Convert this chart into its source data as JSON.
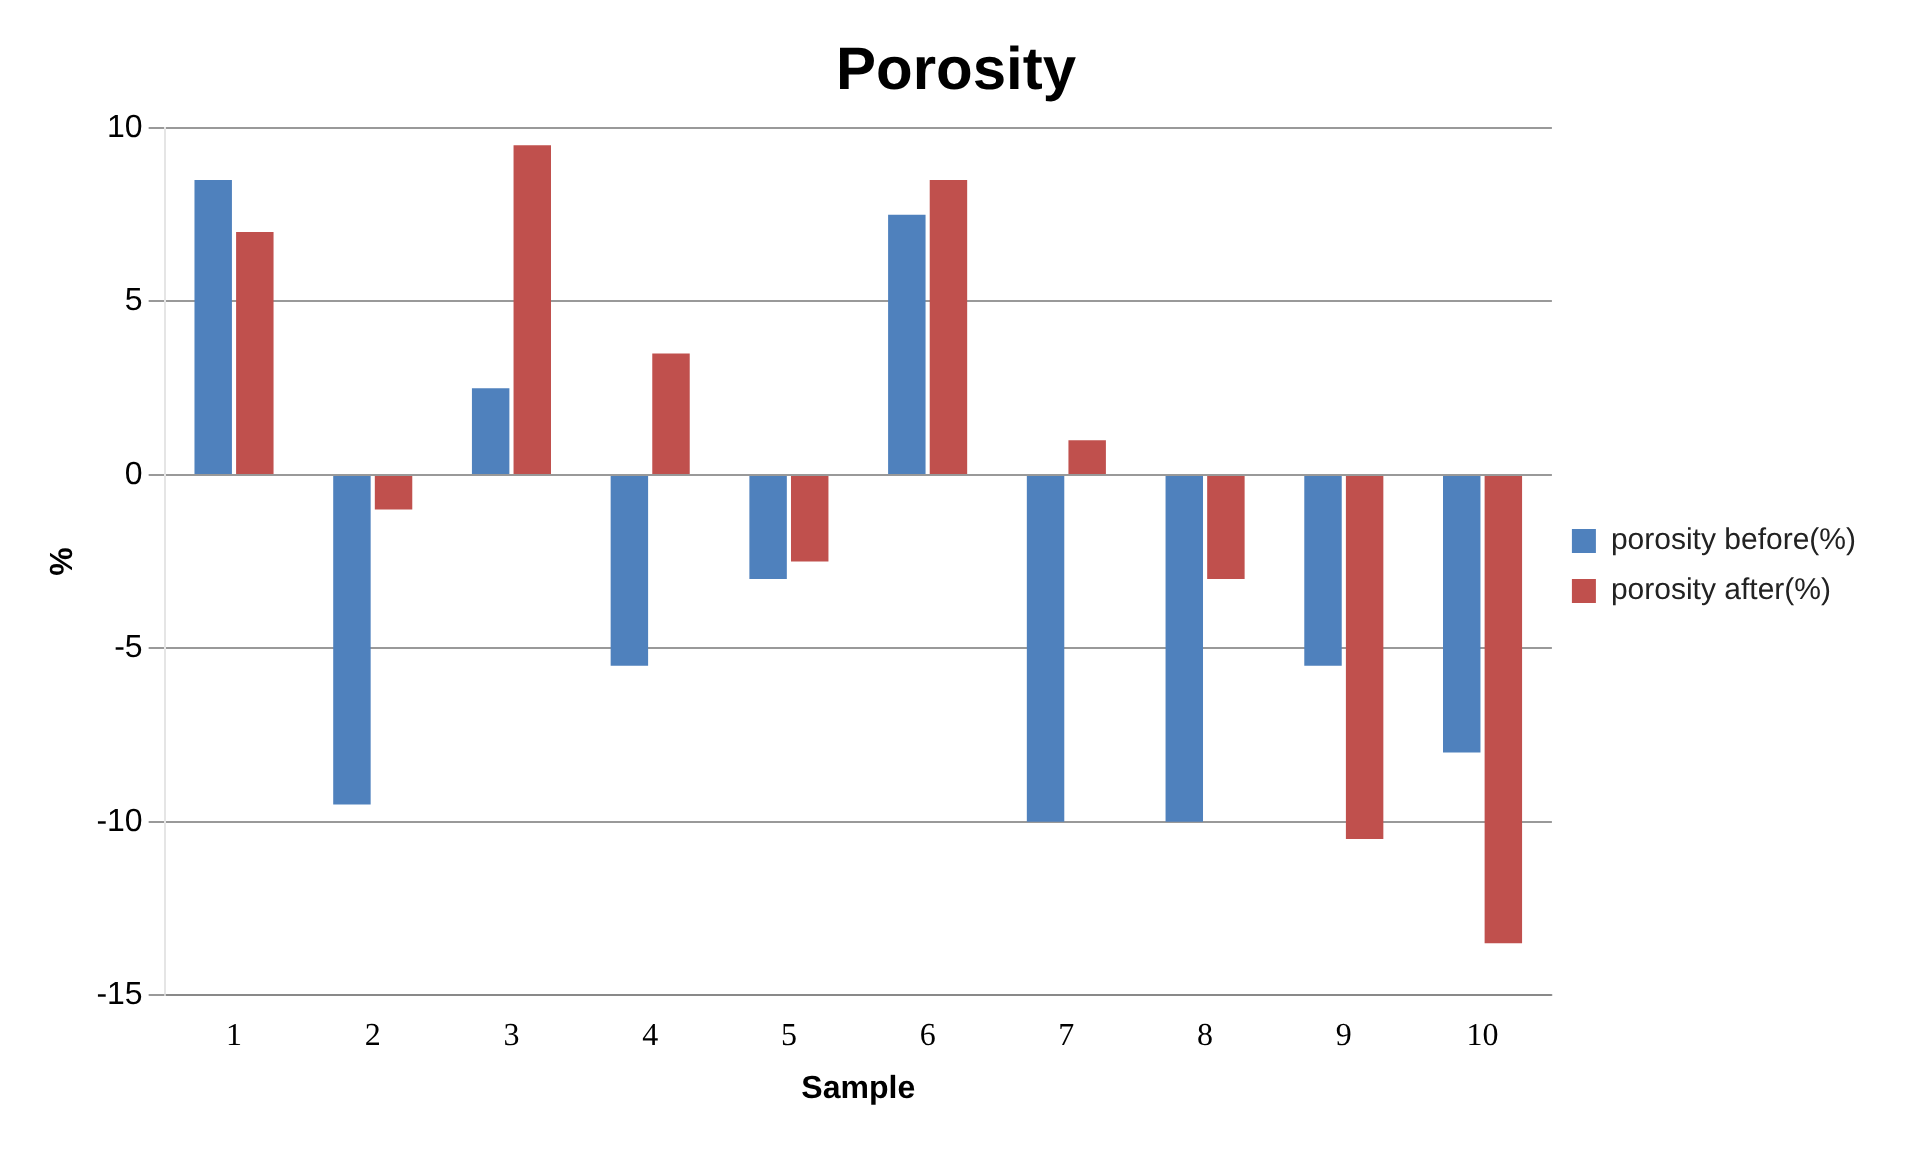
{
  "chart_data": {
    "type": "bar",
    "title": "Porosity",
    "xlabel": "Sample",
    "ylabel": "%",
    "categories": [
      "1",
      "2",
      "3",
      "4",
      "5",
      "6",
      "7",
      "8",
      "9",
      "10"
    ],
    "series": [
      {
        "name": "porosity before(%)",
        "color": "#4f81bd",
        "values": [
          8.5,
          -9.5,
          2.5,
          -5.5,
          -3,
          7.5,
          -10,
          -10,
          -5.5,
          -8
        ]
      },
      {
        "name": "porosity after(%)",
        "color": "#c0504d",
        "values": [
          7,
          -1,
          9.5,
          3.5,
          -2.5,
          8.5,
          1,
          -3,
          -10.5,
          -13.5
        ]
      }
    ],
    "ylim": [
      -15,
      10
    ],
    "yticks": [
      -15,
      -10,
      -5,
      0,
      5,
      10
    ],
    "grid": "y",
    "legend": "right"
  }
}
